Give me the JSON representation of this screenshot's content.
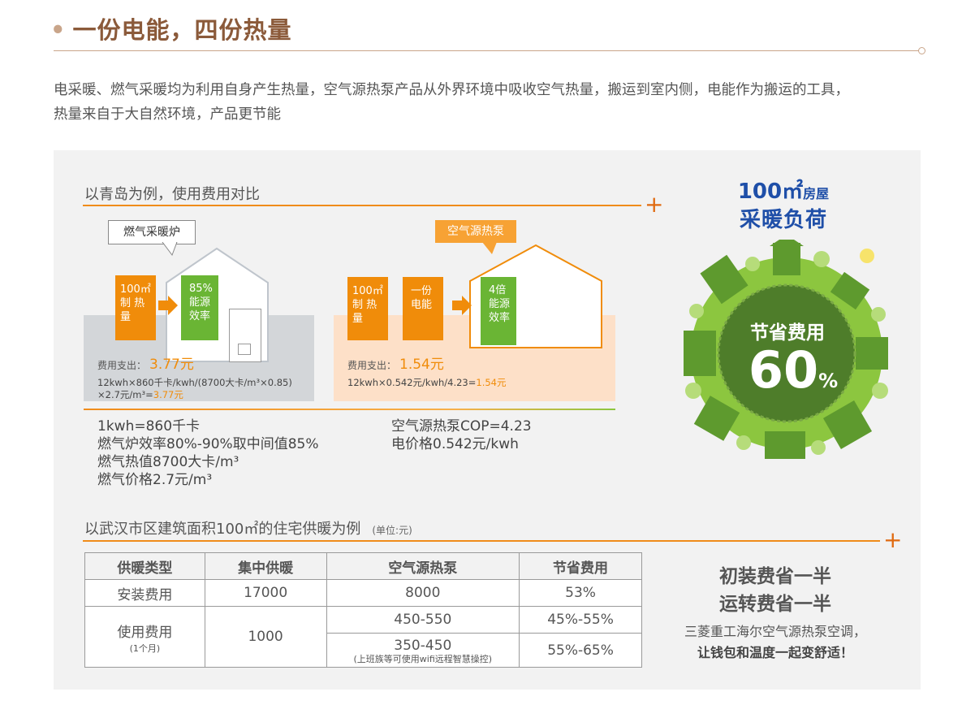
{
  "header": {
    "bullet": "•",
    "title": "一份电能，四份热量"
  },
  "intro": {
    "line1": "电采暖、燃气采暖均为利用自身产生热量，空气源热泵产品从外界环境中吸收空气热量，搬运到室内侧，电能作为搬运的工具，",
    "line2": "热量来自于大自然环境，产品更节能"
  },
  "compare": {
    "title": "以青岛为例，使用费用对比",
    "gas": {
      "tag": "燃气采暖炉",
      "box_orange": [
        "100㎡",
        "制 热 量"
      ],
      "box_green": [
        "85%",
        "能源",
        "效率"
      ],
      "cost_label": "费用支出：",
      "cost_value": "3.77元",
      "formula_line1": "12kwh×860千卡/kwh/(8700大卡/m³×0.85)",
      "formula_line2_prefix": "×2.7元/m³=",
      "formula_line2_value": "3.77元"
    },
    "heatpump": {
      "tag": "空气源热泵",
      "box_orange": [
        "100㎡",
        "制 热 量"
      ],
      "box_middle": [
        "一份",
        "电能"
      ],
      "box_green": [
        "4倍",
        "能源",
        "效率"
      ],
      "cost_label": "费用支出：",
      "cost_value": "1.54元",
      "formula_prefix": "12kwh×0.542元/kwh/4.23=",
      "formula_value": "1.54元"
    },
    "notes_left": [
      "1kwh=860千卡",
      "燃气炉效率80%-90%取中间值85%",
      "燃气热值8700大卡/m³",
      "燃气价格2.7元/m³"
    ],
    "notes_right": [
      "空气源热泵COP=4.23",
      "电价格0.542元/kwh"
    ]
  },
  "badge": {
    "area": "100㎡",
    "area_suffix": "房屋",
    "subtitle": "采暖负荷",
    "save_label": "节省费用",
    "save_value": "60",
    "save_unit": "%",
    "colors": {
      "dark_green": "#4e7d2a",
      "light_green": "#8cc63f",
      "blue": "#1f4fa8"
    }
  },
  "wuhan": {
    "title": "以武汉市区建筑面积100㎡的住宅供暖为例",
    "unit": "(单位:元)",
    "headers": [
      "供暖类型",
      "集中供暖",
      "空气源热泵",
      "节省费用"
    ],
    "row_install": {
      "type": "安装费用",
      "central": "17000",
      "heatpump": "8000",
      "saving": "53%"
    },
    "row_use": {
      "type": "使用费用",
      "type_sub": "(1个月)",
      "central": "1000",
      "heatpump_a": "450-550",
      "saving_a": "45%-55%",
      "heatpump_b": "350-450",
      "heatpump_b_sub": "(上班族等可使用wifi远程智慧操控)",
      "saving_b": "55%-65%"
    }
  },
  "summary": {
    "line1": "初装费省一半",
    "line2": "运转费省一半",
    "line3": "三菱重工海尔空气源热泵空调，",
    "line4": "让钱包和温度一起变舒适！"
  }
}
